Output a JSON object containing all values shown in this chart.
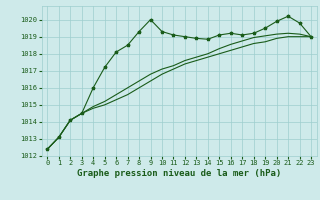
{
  "xlabel": "Graphe pression niveau de la mer (hPa)",
  "ylim": [
    1012,
    1020.8
  ],
  "xlim": [
    -0.5,
    23.5
  ],
  "yticks": [
    1012,
    1013,
    1014,
    1015,
    1016,
    1017,
    1018,
    1019,
    1020
  ],
  "xticks": [
    0,
    1,
    2,
    3,
    4,
    5,
    6,
    7,
    8,
    9,
    10,
    11,
    12,
    13,
    14,
    15,
    16,
    17,
    18,
    19,
    20,
    21,
    22,
    23
  ],
  "bg_color": "#ceeaea",
  "grid_color": "#9ecece",
  "line_color": "#1a5c1a",
  "line1_x": [
    0,
    1,
    2,
    3,
    4,
    5,
    6,
    7,
    8,
    9,
    10,
    11,
    12,
    13,
    14,
    15,
    16,
    17,
    18,
    19,
    20,
    21,
    22,
    23
  ],
  "line1_y": [
    1012.4,
    1013.1,
    1014.1,
    1014.5,
    1016.0,
    1017.2,
    1018.1,
    1018.5,
    1019.3,
    1020.0,
    1019.3,
    1019.1,
    1019.0,
    1018.9,
    1018.85,
    1019.1,
    1019.2,
    1019.1,
    1019.2,
    1019.5,
    1019.9,
    1020.2,
    1019.8,
    1019.0
  ],
  "line2_x": [
    0,
    1,
    2,
    3,
    4,
    5,
    6,
    7,
    8,
    9,
    10,
    11,
    12,
    13,
    14,
    15,
    16,
    17,
    18,
    19,
    20,
    21,
    22,
    23
  ],
  "line2_y": [
    1012.4,
    1013.1,
    1014.1,
    1014.5,
    1014.8,
    1015.0,
    1015.3,
    1015.6,
    1016.0,
    1016.4,
    1016.8,
    1017.1,
    1017.4,
    1017.6,
    1017.8,
    1018.0,
    1018.2,
    1018.4,
    1018.6,
    1018.7,
    1018.9,
    1019.0,
    1019.0,
    1019.0
  ],
  "line3_x": [
    0,
    1,
    2,
    3,
    4,
    5,
    6,
    7,
    8,
    9,
    10,
    11,
    12,
    13,
    14,
    15,
    16,
    17,
    18,
    19,
    20,
    21,
    22,
    23
  ],
  "line3_y": [
    1012.4,
    1013.1,
    1014.1,
    1014.5,
    1014.9,
    1015.2,
    1015.6,
    1016.0,
    1016.4,
    1016.8,
    1017.1,
    1017.3,
    1017.6,
    1017.8,
    1018.0,
    1018.3,
    1018.55,
    1018.75,
    1018.95,
    1019.05,
    1019.15,
    1019.2,
    1019.15,
    1019.0
  ],
  "label_fontsize": 6.5,
  "tick_fontsize": 5.0
}
